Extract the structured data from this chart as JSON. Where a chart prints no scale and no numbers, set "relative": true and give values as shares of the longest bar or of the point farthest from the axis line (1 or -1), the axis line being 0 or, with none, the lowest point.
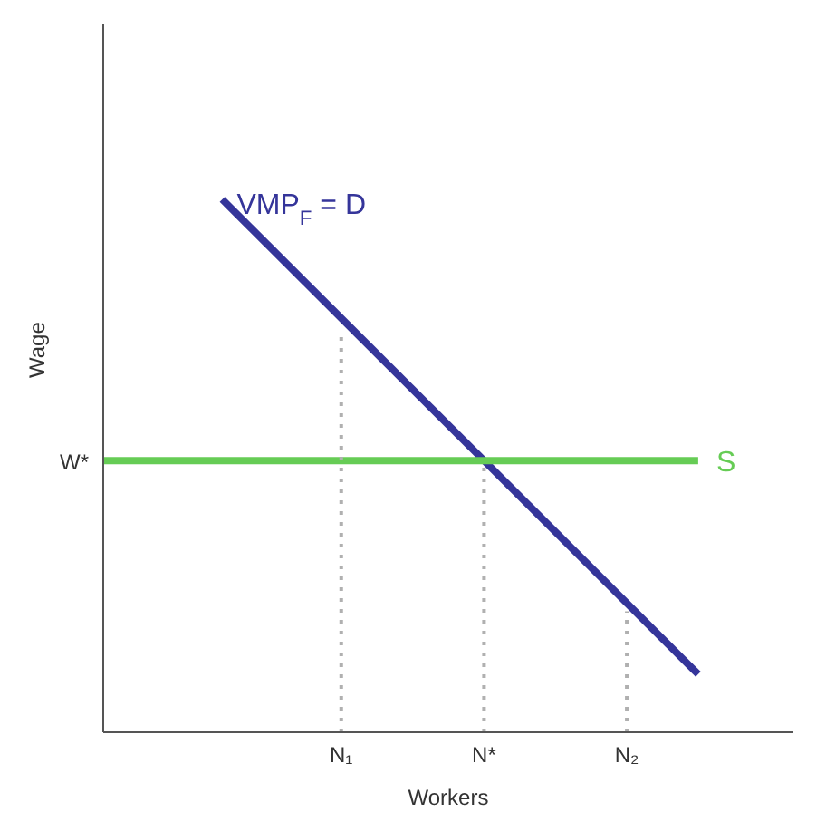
{
  "chart_data": {
    "type": "line",
    "relative": true,
    "xlabel": "Workers",
    "ylabel": "Wage",
    "categories": [
      null,
      null,
      null,
      null,
      null,
      null,
      null,
      null,
      null,
      null,
      "N₁",
      null,
      null,
      null,
      null,
      null,
      "N*",
      null,
      null,
      null,
      null,
      null,
      "N₂",
      null,
      null,
      null,
      null,
      null,
      null,
      null
    ],
    "annotations": [
      "W*"
    ],
    "marker": "none",
    "line_style": "solid",
    "series": [
      {
        "name": "VMP$_{F}$ = D",
        "color": "#35359a",
        "values": [
          null,
          null,
          null,
          null,
          null,
          1,
          null,
          null,
          null,
          null,
          null,
          null,
          null,
          null,
          null,
          null,
          null,
          null,
          null,
          null,
          null,
          null,
          null,
          null,
          null,
          0.109,
          null,
          null,
          null,
          null
        ]
      },
      {
        "name": "S",
        "color": "#66cc55",
        "values": [
          0.51,
          null,
          null,
          null,
          null,
          null,
          null,
          null,
          null,
          null,
          null,
          null,
          null,
          null,
          null,
          null,
          null,
          null,
          null,
          null,
          null,
          null,
          null,
          null,
          null,
          0.51,
          null,
          null,
          null,
          null
        ]
      },
      {
        "color": "#b0b0b0",
        "x": [
          "N₁",
          "N₁"
        ],
        "values": [
          0,
          0.753
        ],
        "line_style": "dotted"
      },
      {
        "color": "#b0b0b0",
        "x": [
          "N*",
          "N*"
        ],
        "values": [
          0,
          0.51
        ],
        "line_style": "dotted"
      },
      {
        "color": "#b0b0b0",
        "x": [
          "N₂",
          "N₂"
        ],
        "values": [
          0,
          0.227
        ],
        "line_style": "dotted"
      }
    ]
  }
}
